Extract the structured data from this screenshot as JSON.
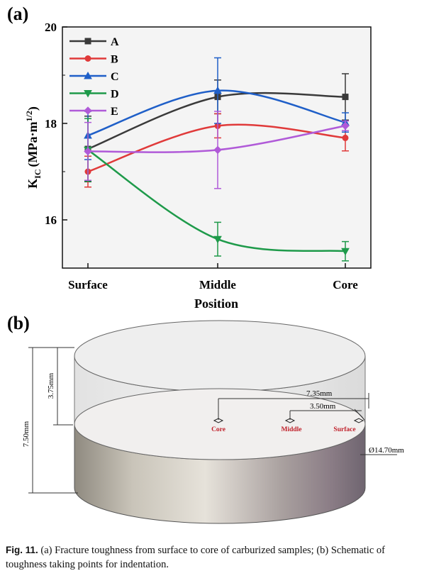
{
  "panel_a": {
    "label": "(a)"
  },
  "panel_b": {
    "label": "(b)"
  },
  "chart_data": {
    "type": "line",
    "categories": [
      "Surface",
      "Middle",
      "Core"
    ],
    "xlabel": "Position",
    "ylabel_main": "K",
    "ylabel_sub": "IC",
    "ylabel_units": "(MPa·m",
    "ylabel_exp": "1/2",
    "ylabel_close": ")",
    "ylim": [
      15.0,
      20.0
    ],
    "yticks": [
      "16",
      "18",
      "20"
    ],
    "ytick_values": [
      16,
      18,
      20
    ],
    "legend_position": "top-left",
    "grid": false,
    "series": [
      {
        "name": "A",
        "color": "#3a3a3a",
        "marker": "square",
        "values": [
          17.47,
          18.55,
          18.55
        ],
        "err": [
          0.68,
          0.35,
          0.48
        ]
      },
      {
        "name": "B",
        "color": "#e03a3a",
        "marker": "circle",
        "values": [
          17.0,
          17.95,
          17.7
        ],
        "err": [
          0.32,
          0.25,
          0.27
        ]
      },
      {
        "name": "C",
        "color": "#1f5fc8",
        "marker": "triangle-up",
        "values": [
          17.75,
          18.68,
          18.02
        ],
        "err": [
          0.5,
          0.68,
          0.2
        ]
      },
      {
        "name": "D",
        "color": "#1e9a4a",
        "marker": "triangle-down",
        "values": [
          17.45,
          15.6,
          15.35
        ],
        "err": [
          0.65,
          0.35,
          0.2
        ]
      },
      {
        "name": "E",
        "color": "#b05ad8",
        "marker": "diamond",
        "values": [
          17.42,
          17.45,
          17.95
        ],
        "err": [
          0.6,
          0.8,
          0.1
        ]
      }
    ]
  },
  "schematic": {
    "dim_total_height": "7.50mm",
    "dim_half_height": "3.75mm",
    "dim_core_radius": "7.35mm",
    "dim_middle_radius": "3.50mm",
    "dim_diameter": "Ø14.70mm",
    "point_core": "Core",
    "point_middle": "Middle",
    "point_surface": "Surface"
  },
  "caption": {
    "fig_label": "Fig. 11.",
    "text": " (a) Fracture toughness from surface to core of carburized samples; (b) Schematic of toughness taking points for indentation."
  }
}
